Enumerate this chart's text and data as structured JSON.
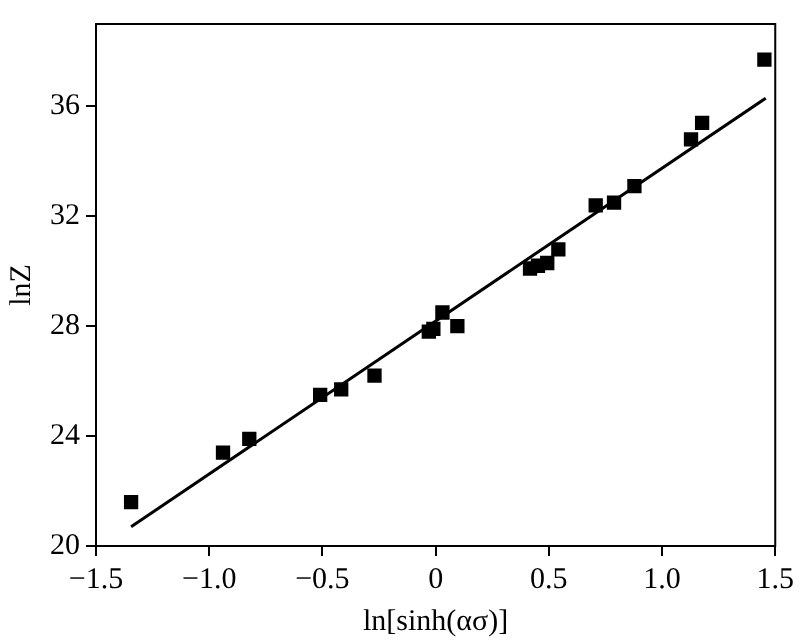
{
  "chart_data": {
    "type": "scatter",
    "xlabel": "ln[sinh(ασ)]",
    "ylabel": "lnZ",
    "xlim": [
      -1.5,
      1.5
    ],
    "xticks": [
      {
        "value": -1.5,
        "label": "−1.5"
      },
      {
        "value": -1,
        "label": "−1.0"
      },
      {
        "value": -0.5,
        "label": "−0.5"
      },
      0,
      {
        "value": 0.5,
        "label": "0.5"
      },
      {
        "value": 1,
        "label": "1.0"
      },
      {
        "value": 1.5,
        "label": "1.5"
      }
    ],
    "ylim": [
      20,
      39
    ],
    "yticks": [
      20,
      24,
      28,
      32,
      36
    ],
    "grid": false,
    "legend": false,
    "marker": "square",
    "series": [
      {
        "color": "#000000",
        "x": [
          -1.345,
          -0.939,
          -0.823,
          -0.51,
          -0.417,
          -0.27,
          -0.03,
          -0.01,
          0.03,
          0.096,
          0.417,
          0.452,
          0.493,
          0.542,
          0.707,
          0.788,
          0.878,
          1.128,
          1.177,
          1.452
        ],
        "values": [
          21.6,
          23.4,
          23.9,
          25.5,
          25.7,
          26.2,
          27.8,
          27.9,
          28.5,
          28.0,
          30.1,
          30.2,
          30.3,
          30.8,
          32.4,
          32.5,
          33.1,
          34.8,
          35.4,
          37.7
        ]
      },
      {
        "type": "line",
        "color": "#000000",
        "marker": "none",
        "line_style": "solid",
        "x": [
          -1.345,
          1.458
        ],
        "values": [
          20.7,
          36.3
        ]
      }
    ]
  }
}
